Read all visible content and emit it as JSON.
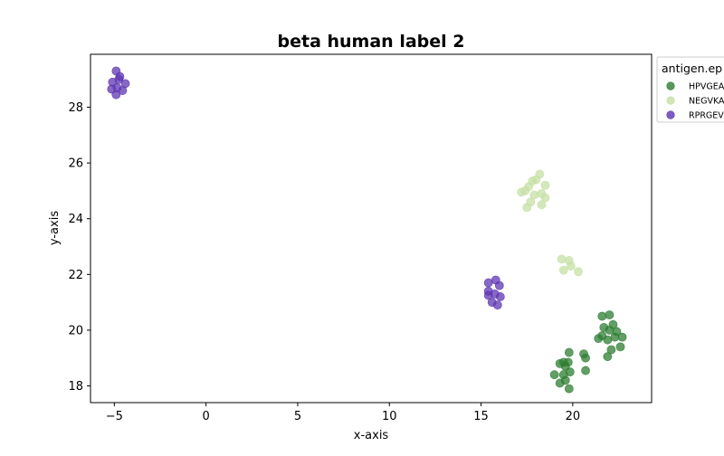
{
  "chart_data": {
    "type": "scatter",
    "title": "beta human label 2",
    "xlabel": "x-axis",
    "ylabel": "y-axis",
    "xlim": [
      -6.3,
      24.3
    ],
    "ylim": [
      17.4,
      29.9
    ],
    "xticks": [
      -5,
      0,
      5,
      10,
      15,
      20
    ],
    "yticks": [
      18,
      20,
      22,
      24,
      26,
      28
    ],
    "grid": false,
    "legend": {
      "title": "antigen.ep",
      "placement": "outside-top-right",
      "entries": [
        "HPVGEA",
        "NEGVKA",
        "RPRGEV"
      ]
    },
    "series": [
      {
        "name": "HPVGEA",
        "color": "#2e7d32",
        "points": [
          [
            21.6,
            20.5
          ],
          [
            22.0,
            20.55
          ],
          [
            21.7,
            20.1
          ],
          [
            22.2,
            20.2
          ],
          [
            22.0,
            20.0
          ],
          [
            22.4,
            19.95
          ],
          [
            21.6,
            19.8
          ],
          [
            21.4,
            19.7
          ],
          [
            22.3,
            19.75
          ],
          [
            21.9,
            19.65
          ],
          [
            22.7,
            19.75
          ],
          [
            22.6,
            19.4
          ],
          [
            22.1,
            19.3
          ],
          [
            21.9,
            19.05
          ],
          [
            19.8,
            19.2
          ],
          [
            20.6,
            19.15
          ],
          [
            20.7,
            19.0
          ],
          [
            19.5,
            18.85
          ],
          [
            19.75,
            18.85
          ],
          [
            19.6,
            18.7
          ],
          [
            19.3,
            18.8
          ],
          [
            20.7,
            18.55
          ],
          [
            19.85,
            18.5
          ],
          [
            19.5,
            18.4
          ],
          [
            19.0,
            18.4
          ],
          [
            19.6,
            18.2
          ],
          [
            19.3,
            18.1
          ],
          [
            19.8,
            17.9
          ]
        ]
      },
      {
        "name": "NEGVKA",
        "color": "#c5e0a5",
        "points": [
          [
            18.2,
            25.6
          ],
          [
            18.0,
            25.4
          ],
          [
            17.8,
            25.35
          ],
          [
            18.5,
            25.2
          ],
          [
            17.6,
            25.15
          ],
          [
            17.4,
            25.0
          ],
          [
            17.2,
            24.95
          ],
          [
            18.3,
            24.9
          ],
          [
            17.9,
            24.85
          ],
          [
            18.5,
            24.75
          ],
          [
            17.7,
            24.6
          ],
          [
            18.3,
            24.5
          ],
          [
            17.5,
            24.4
          ],
          [
            19.4,
            22.55
          ],
          [
            19.8,
            22.5
          ],
          [
            19.9,
            22.3
          ],
          [
            19.5,
            22.15
          ],
          [
            20.3,
            22.1
          ]
        ]
      },
      {
        "name": "RPRGEV",
        "color": "#5e35b1",
        "points": [
          [
            -4.9,
            29.3
          ],
          [
            -4.7,
            29.1
          ],
          [
            -4.75,
            29.0
          ],
          [
            -5.1,
            28.9
          ],
          [
            -4.4,
            28.85
          ],
          [
            -4.85,
            28.7
          ],
          [
            -5.15,
            28.65
          ],
          [
            -4.55,
            28.6
          ],
          [
            -4.9,
            28.45
          ],
          [
            15.8,
            21.8
          ],
          [
            15.4,
            21.7
          ],
          [
            16.0,
            21.6
          ],
          [
            15.4,
            21.4
          ],
          [
            15.75,
            21.3
          ],
          [
            15.4,
            21.25
          ],
          [
            16.05,
            21.2
          ],
          [
            15.6,
            21.0
          ],
          [
            15.9,
            20.9
          ]
        ]
      }
    ]
  }
}
